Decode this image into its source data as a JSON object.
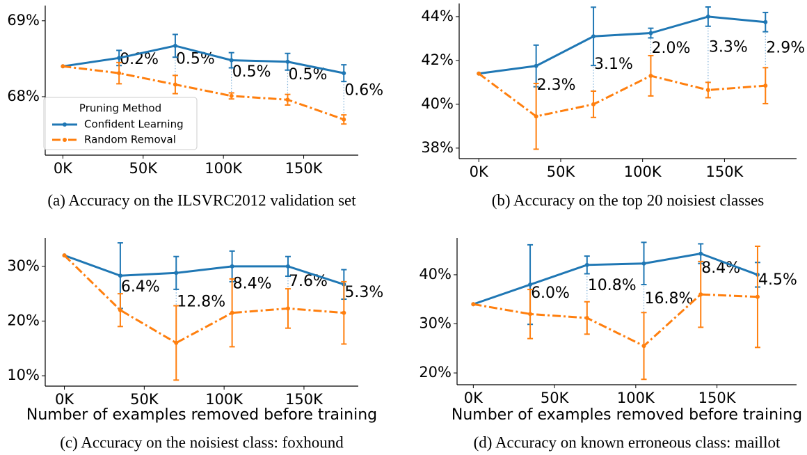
{
  "chart_data": [
    {
      "type": "line",
      "caption": "(a) Accuracy on the ILSVRC2012 validation set",
      "x": [
        0,
        35,
        70,
        105,
        140,
        175
      ],
      "xlim": [
        -11,
        184
      ],
      "xticks": [
        {
          "value": 0,
          "label": "0K"
        },
        {
          "value": 50,
          "label": "50K"
        },
        {
          "value": 100,
          "label": "100K"
        },
        {
          "value": 150,
          "label": "150K"
        }
      ],
      "ylim": [
        67.23,
        69.2
      ],
      "yticks": [
        {
          "value": 68,
          "label": "68%"
        },
        {
          "value": 69,
          "label": "69%"
        }
      ],
      "series": [
        {
          "name": "Confident Learning",
          "color": "#1f77b4",
          "linestyle": "solid",
          "values": [
            68.4,
            68.51,
            68.67,
            68.48,
            68.46,
            68.31
          ],
          "errors": [
            0,
            0.1,
            0.15,
            0.1,
            0.11,
            0.11
          ]
        },
        {
          "name": "Random Removal",
          "color": "#ff7f0e",
          "linestyle": "dashdot",
          "values": [
            68.4,
            68.31,
            68.16,
            68.01,
            67.96,
            67.7
          ],
          "errors": [
            0,
            0.14,
            0.12,
            0.04,
            0.07,
            0.06
          ]
        }
      ],
      "annotations": [
        "0.2%",
        "0.5%",
        "0.5%",
        "0.5%",
        "0.6%"
      ],
      "legend": {
        "title": "Pruning Method",
        "loc": "lower left"
      }
    },
    {
      "type": "line",
      "caption": "(b) Accuracy on the top 20 noisiest classes",
      "x": [
        0,
        35,
        70,
        105,
        140,
        175
      ],
      "xlim": [
        -12,
        194
      ],
      "xticks": [
        {
          "value": 0,
          "label": "0K"
        },
        {
          "value": 50,
          "label": "50K"
        },
        {
          "value": 100,
          "label": "100K"
        },
        {
          "value": 150,
          "label": "150K"
        }
      ],
      "ylim": [
        37.52,
        44.6
      ],
      "yticks": [
        {
          "value": 38,
          "label": "38%"
        },
        {
          "value": 40,
          "label": "40%"
        },
        {
          "value": 42,
          "label": "42%"
        },
        {
          "value": 44,
          "label": "44%"
        }
      ],
      "series": [
        {
          "color": "#1f77b4",
          "linestyle": "solid",
          "values": [
            41.4,
            41.75,
            43.1,
            43.25,
            44.0,
            43.75
          ],
          "errors": [
            0,
            0.95,
            1.33,
            0.22,
            0.44,
            0.44
          ]
        },
        {
          "color": "#ff7f0e",
          "linestyle": "dashdot",
          "values": [
            41.4,
            39.45,
            40.0,
            41.3,
            40.65,
            40.85
          ],
          "errors": [
            0,
            1.5,
            0.6,
            0.92,
            0.35,
            0.82
          ]
        }
      ],
      "annotations": [
        "2.3%",
        "3.1%",
        "2.0%",
        "3.3%",
        "2.9%"
      ]
    },
    {
      "type": "line",
      "caption": "(c) Accuracy on the noisiest class: foxhound",
      "xlabel": "Number of examples removed before training",
      "x": [
        0,
        35,
        70,
        105,
        140,
        175
      ],
      "xlim": [
        -12,
        184
      ],
      "xticks": [
        {
          "value": 0,
          "label": "0K"
        },
        {
          "value": 50,
          "label": "50K"
        },
        {
          "value": 100,
          "label": "100K"
        },
        {
          "value": 150,
          "label": "150K"
        }
      ],
      "ylim": [
        8.1,
        35.2
      ],
      "yticks": [
        {
          "value": 10,
          "label": "10%"
        },
        {
          "value": 20,
          "label": "20%"
        },
        {
          "value": 30,
          "label": "30%"
        }
      ],
      "series": [
        {
          "color": "#1f77b4",
          "linestyle": "solid",
          "values": [
            32,
            28.3,
            28.8,
            30.0,
            30.0,
            26.7
          ],
          "errors": [
            0,
            6.0,
            3.0,
            2.8,
            1.8,
            2.7
          ]
        },
        {
          "color": "#ff7f0e",
          "linestyle": "dashdot",
          "values": [
            32,
            22.0,
            16.0,
            21.5,
            22.3,
            21.5
          ],
          "errors": [
            0,
            3.0,
            6.8,
            6.2,
            3.6,
            5.7
          ]
        }
      ],
      "annotations": [
        "6.4%",
        "12.8%",
        "8.4%",
        "7.6%",
        "5.3%"
      ]
    },
    {
      "type": "line",
      "caption": "(d) Accuracy on known erroneous class: maillot",
      "xlabel": "Number of examples removed before training",
      "x": [
        0,
        35,
        70,
        105,
        140,
        175
      ],
      "xlim": [
        -10,
        199
      ],
      "xticks": [
        {
          "value": 0,
          "label": "0K"
        },
        {
          "value": 50,
          "label": "50K"
        },
        {
          "value": 100,
          "label": "100K"
        },
        {
          "value": 150,
          "label": "150K"
        }
      ],
      "ylim": [
        17.6,
        47.5
      ],
      "yticks": [
        {
          "value": 20,
          "label": "20%"
        },
        {
          "value": 30,
          "label": "30%"
        },
        {
          "value": 40,
          "label": "40%"
        }
      ],
      "series": [
        {
          "color": "#1f77b4",
          "linestyle": "solid",
          "values": [
            34,
            38,
            42,
            42.3,
            44.3,
            40
          ],
          "errors": [
            0,
            8.1,
            1.8,
            4.3,
            2.0,
            2.5
          ]
        },
        {
          "color": "#ff7f0e",
          "linestyle": "dashdot",
          "values": [
            34,
            32,
            31.2,
            25.5,
            36,
            35.5
          ],
          "errors": [
            0,
            5.0,
            3.3,
            6.8,
            6.7,
            10.3
          ]
        }
      ],
      "annotations": [
        "6.0%",
        "10.8%",
        "16.8%",
        "8.4%",
        "4.5%"
      ]
    }
  ]
}
